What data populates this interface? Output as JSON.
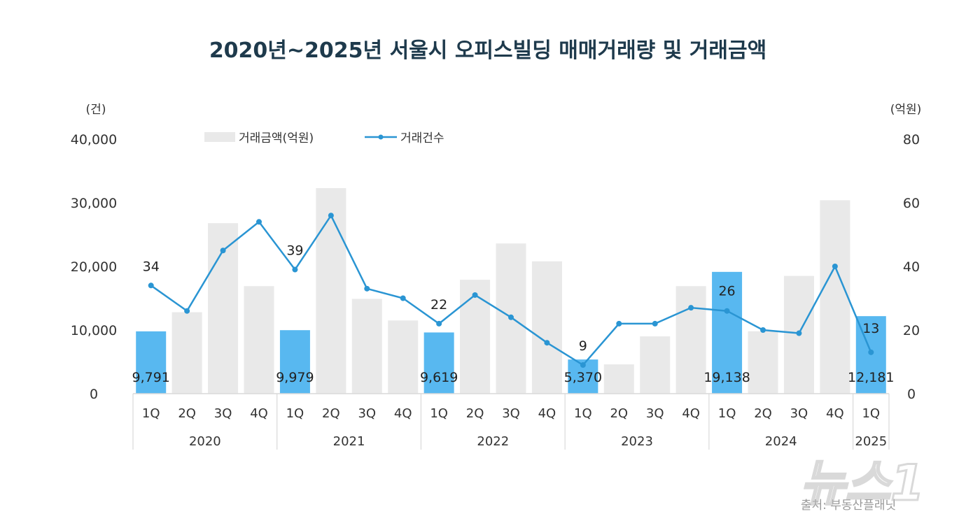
{
  "chart_data": {
    "type": "bar+line",
    "title": "2020년~2025년 서울시 오피스빌딩 매매거래량 및 거래금액",
    "left_axis_unit": "(건)",
    "right_axis_unit": "(억원)",
    "left_ticks": [
      "0",
      "10,000",
      "20,000",
      "30,000",
      "40,000"
    ],
    "right_ticks": [
      "0",
      "20",
      "40",
      "60",
      "80"
    ],
    "ylim_left": [
      0,
      40000
    ],
    "ylim_right": [
      0,
      80
    ],
    "quarters": [
      "1Q",
      "2Q",
      "3Q",
      "4Q",
      "1Q",
      "2Q",
      "3Q",
      "4Q",
      "1Q",
      "2Q",
      "3Q",
      "4Q",
      "1Q",
      "2Q",
      "3Q",
      "4Q",
      "1Q",
      "2Q",
      "3Q",
      "4Q",
      "1Q"
    ],
    "years": [
      "2020",
      "2021",
      "2022",
      "2023",
      "2024",
      "2025"
    ],
    "legend": {
      "bar": "거래금액(억원)",
      "line": "거래건수",
      "position": "top"
    },
    "series": [
      {
        "name": "거래금액(억원)",
        "type": "bar",
        "axis": "left",
        "values": [
          9791,
          12800,
          26800,
          16900,
          9979,
          32300,
          14900,
          11500,
          9619,
          17900,
          23600,
          20800,
          5370,
          4600,
          9000,
          16900,
          19138,
          9800,
          18500,
          30400,
          12181
        ]
      },
      {
        "name": "거래건수",
        "type": "line",
        "axis": "right",
        "values": [
          34,
          26,
          45,
          54,
          39,
          56,
          33,
          30,
          22,
          31,
          24,
          16,
          9,
          22,
          22,
          27,
          26,
          20,
          19,
          40,
          13
        ]
      }
    ],
    "bar_labels": {
      "0": "9,791",
      "4": "9,979",
      "8": "9,619",
      "12": "5,370",
      "16": "19,138",
      "20": "12,181"
    },
    "line_labels": {
      "0": "34",
      "4": "39",
      "8": "22",
      "12": "9",
      "16": "26",
      "20": "13"
    },
    "highlight_quarters": [
      0,
      4,
      8,
      12,
      16,
      20
    ],
    "colors": {
      "bar": "#e9e9e9",
      "bar_highlight": "#58b8f0",
      "line": "#2a95d3",
      "title": "#1e3a4c"
    },
    "grid": false
  },
  "source": "출처: 부동산플래닛",
  "watermark": "뉴스1"
}
